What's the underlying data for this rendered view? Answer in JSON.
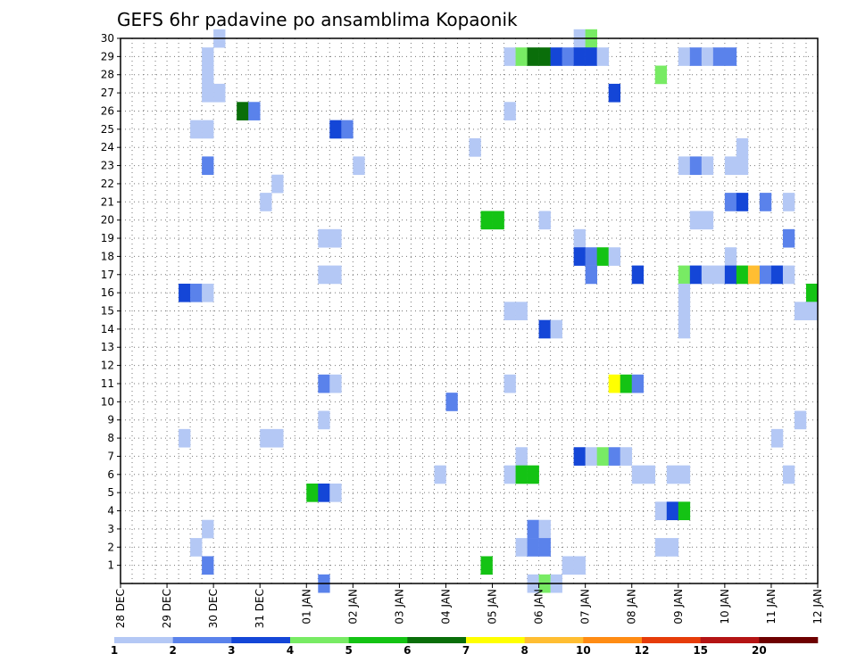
{
  "chart_data": {
    "type": "heatmap",
    "title": "GEFS 6hr padavine po ansamblima Kopaonik",
    "x_unit": "6h step",
    "x_range": [
      0,
      60
    ],
    "y_range": [
      0,
      30
    ],
    "y_ticks": [
      1,
      2,
      3,
      4,
      5,
      6,
      7,
      8,
      9,
      10,
      11,
      12,
      13,
      14,
      15,
      16,
      17,
      18,
      19,
      20,
      21,
      22,
      23,
      24,
      25,
      26,
      27,
      28,
      29,
      30
    ],
    "x_ticks": [
      {
        "step": 0,
        "label": "28 DEC"
      },
      {
        "step": 4,
        "label": "29 DEC"
      },
      {
        "step": 8,
        "label": "30 DEC"
      },
      {
        "step": 12,
        "label": "31 DEC"
      },
      {
        "step": 16,
        "label": "01 JAN"
      },
      {
        "step": 20,
        "label": "02 JAN"
      },
      {
        "step": 24,
        "label": "03 JAN"
      },
      {
        "step": 28,
        "label": "04 JAN"
      },
      {
        "step": 32,
        "label": "05 JAN"
      },
      {
        "step": 36,
        "label": "06 JAN"
      },
      {
        "step": 40,
        "label": "07 JAN"
      },
      {
        "step": 44,
        "label": "08 JAN"
      },
      {
        "step": 48,
        "label": "09 JAN"
      },
      {
        "step": 52,
        "label": "10 JAN"
      },
      {
        "step": 56,
        "label": "11 JAN"
      },
      {
        "step": 60,
        "label": "12 JAN"
      }
    ],
    "grid": true,
    "colorbar": {
      "position": "bottom",
      "labels": [
        "1",
        "2",
        "3",
        "4",
        "5",
        "6",
        "7",
        "8",
        "10",
        "12",
        "15",
        "20"
      ],
      "colors": [
        "#b4c8f5",
        "#5a82eb",
        "#1446d7",
        "#78eb64",
        "#14c314",
        "#0a6e0a",
        "#ffff00",
        "#ffbe32",
        "#ff8c14",
        "#e63c0a",
        "#b41414",
        "#6e0000"
      ]
    },
    "cells": [
      {
        "x": 8,
        "y": 30,
        "c": 0
      },
      {
        "x": 39,
        "y": 30,
        "c": 0
      },
      {
        "x": 40,
        "y": 30,
        "c": 3
      },
      {
        "x": 7,
        "y": 29,
        "c": 0
      },
      {
        "x": 33,
        "y": 29,
        "c": 0
      },
      {
        "x": 34,
        "y": 29,
        "c": 3
      },
      {
        "x": 35,
        "y": 29,
        "c": 5
      },
      {
        "x": 36,
        "y": 29,
        "c": 5
      },
      {
        "x": 37,
        "y": 29,
        "c": 2
      },
      {
        "x": 38,
        "y": 29,
        "c": 1
      },
      {
        "x": 39,
        "y": 29,
        "c": 2
      },
      {
        "x": 40,
        "y": 29,
        "c": 2
      },
      {
        "x": 41,
        "y": 29,
        "c": 0
      },
      {
        "x": 48,
        "y": 29,
        "c": 0
      },
      {
        "x": 49,
        "y": 29,
        "c": 1
      },
      {
        "x": 50,
        "y": 29,
        "c": 0
      },
      {
        "x": 51,
        "y": 29,
        "c": 1
      },
      {
        "x": 52,
        "y": 29,
        "c": 1
      },
      {
        "x": 7,
        "y": 28,
        "c": 0
      },
      {
        "x": 46,
        "y": 28,
        "c": 3
      },
      {
        "x": 7,
        "y": 27,
        "c": 0
      },
      {
        "x": 8,
        "y": 27,
        "c": 0
      },
      {
        "x": 42,
        "y": 27,
        "c": 2
      },
      {
        "x": 10,
        "y": 26,
        "c": 5
      },
      {
        "x": 11,
        "y": 26,
        "c": 1
      },
      {
        "x": 33,
        "y": 26,
        "c": 0
      },
      {
        "x": 6,
        "y": 25,
        "c": 0
      },
      {
        "x": 7,
        "y": 25,
        "c": 0
      },
      {
        "x": 18,
        "y": 25,
        "c": 2
      },
      {
        "x": 19,
        "y": 25,
        "c": 1
      },
      {
        "x": 30,
        "y": 24,
        "c": 0
      },
      {
        "x": 53,
        "y": 24,
        "c": 0
      },
      {
        "x": 7,
        "y": 23,
        "c": 1
      },
      {
        "x": 20,
        "y": 23,
        "c": 0
      },
      {
        "x": 48,
        "y": 23,
        "c": 0
      },
      {
        "x": 49,
        "y": 23,
        "c": 1
      },
      {
        "x": 50,
        "y": 23,
        "c": 0
      },
      {
        "x": 52,
        "y": 23,
        "c": 0
      },
      {
        "x": 53,
        "y": 23,
        "c": 0
      },
      {
        "x": 13,
        "y": 22,
        "c": 0
      },
      {
        "x": 12,
        "y": 21,
        "c": 0
      },
      {
        "x": 52,
        "y": 21,
        "c": 1
      },
      {
        "x": 53,
        "y": 21,
        "c": 2
      },
      {
        "x": 55,
        "y": 21,
        "c": 1
      },
      {
        "x": 57,
        "y": 21,
        "c": 0
      },
      {
        "x": 31,
        "y": 20,
        "c": 4
      },
      {
        "x": 32,
        "y": 20,
        "c": 4
      },
      {
        "x": 36,
        "y": 20,
        "c": 0
      },
      {
        "x": 49,
        "y": 20,
        "c": 0
      },
      {
        "x": 50,
        "y": 20,
        "c": 0
      },
      {
        "x": 17,
        "y": 19,
        "c": 0
      },
      {
        "x": 18,
        "y": 19,
        "c": 0
      },
      {
        "x": 39,
        "y": 19,
        "c": 0
      },
      {
        "x": 57,
        "y": 19,
        "c": 1
      },
      {
        "x": 39,
        "y": 18,
        "c": 2
      },
      {
        "x": 40,
        "y": 18,
        "c": 1
      },
      {
        "x": 41,
        "y": 18,
        "c": 4
      },
      {
        "x": 42,
        "y": 18,
        "c": 0
      },
      {
        "x": 52,
        "y": 18,
        "c": 0
      },
      {
        "x": 17,
        "y": 17,
        "c": 0
      },
      {
        "x": 18,
        "y": 17,
        "c": 0
      },
      {
        "x": 40,
        "y": 17,
        "c": 1
      },
      {
        "x": 44,
        "y": 17,
        "c": 2
      },
      {
        "x": 48,
        "y": 17,
        "c": 3
      },
      {
        "x": 49,
        "y": 17,
        "c": 2
      },
      {
        "x": 50,
        "y": 17,
        "c": 0
      },
      {
        "x": 51,
        "y": 17,
        "c": 0
      },
      {
        "x": 52,
        "y": 17,
        "c": 2
      },
      {
        "x": 53,
        "y": 17,
        "c": 4
      },
      {
        "x": 54,
        "y": 17,
        "c": 7
      },
      {
        "x": 55,
        "y": 17,
        "c": 1
      },
      {
        "x": 56,
        "y": 17,
        "c": 2
      },
      {
        "x": 57,
        "y": 17,
        "c": 0
      },
      {
        "x": 5,
        "y": 16,
        "c": 2
      },
      {
        "x": 6,
        "y": 16,
        "c": 1
      },
      {
        "x": 7,
        "y": 16,
        "c": 0
      },
      {
        "x": 59,
        "y": 16,
        "c": 4
      },
      {
        "x": 33,
        "y": 15,
        "c": 0
      },
      {
        "x": 34,
        "y": 15,
        "c": 0
      },
      {
        "x": 48,
        "y": 16,
        "c": 0
      },
      {
        "x": 48,
        "y": 15,
        "c": 0
      },
      {
        "x": 36,
        "y": 14,
        "c": 2
      },
      {
        "x": 37,
        "y": 14,
        "c": 0
      },
      {
        "x": 48,
        "y": 14,
        "c": 0
      },
      {
        "x": 59,
        "y": 15,
        "c": 0
      },
      {
        "x": 58,
        "y": 15,
        "c": 0
      },
      {
        "x": 42,
        "y": 11,
        "c": 6
      },
      {
        "x": 43,
        "y": 11,
        "c": 4
      },
      {
        "x": 44,
        "y": 11,
        "c": 1
      },
      {
        "x": 17,
        "y": 11,
        "c": 1
      },
      {
        "x": 18,
        "y": 11,
        "c": 0
      },
      {
        "x": 33,
        "y": 11,
        "c": 0
      },
      {
        "x": 28,
        "y": 10,
        "c": 1
      },
      {
        "x": 17,
        "y": 9,
        "c": 0
      },
      {
        "x": 58,
        "y": 9,
        "c": 0
      },
      {
        "x": 5,
        "y": 8,
        "c": 0
      },
      {
        "x": 12,
        "y": 8,
        "c": 0
      },
      {
        "x": 13,
        "y": 8,
        "c": 0
      },
      {
        "x": 56,
        "y": 8,
        "c": 0
      },
      {
        "x": 34,
        "y": 7,
        "c": 0
      },
      {
        "x": 39,
        "y": 7,
        "c": 2
      },
      {
        "x": 40,
        "y": 7,
        "c": 0
      },
      {
        "x": 41,
        "y": 7,
        "c": 3
      },
      {
        "x": 42,
        "y": 7,
        "c": 1
      },
      {
        "x": 43,
        "y": 7,
        "c": 0
      },
      {
        "x": 27,
        "y": 6,
        "c": 0
      },
      {
        "x": 33,
        "y": 6,
        "c": 0
      },
      {
        "x": 34,
        "y": 6,
        "c": 4
      },
      {
        "x": 35,
        "y": 6,
        "c": 4
      },
      {
        "x": 44,
        "y": 6,
        "c": 0
      },
      {
        "x": 45,
        "y": 6,
        "c": 0
      },
      {
        "x": 47,
        "y": 6,
        "c": 0
      },
      {
        "x": 48,
        "y": 6,
        "c": 0
      },
      {
        "x": 57,
        "y": 6,
        "c": 0
      },
      {
        "x": 16,
        "y": 5,
        "c": 4
      },
      {
        "x": 17,
        "y": 5,
        "c": 2
      },
      {
        "x": 18,
        "y": 5,
        "c": 0
      },
      {
        "x": 46,
        "y": 4,
        "c": 0
      },
      {
        "x": 47,
        "y": 4,
        "c": 2
      },
      {
        "x": 48,
        "y": 4,
        "c": 4
      },
      {
        "x": 7,
        "y": 3,
        "c": 0
      },
      {
        "x": 35,
        "y": 3,
        "c": 1
      },
      {
        "x": 36,
        "y": 3,
        "c": 0
      },
      {
        "x": 6,
        "y": 2,
        "c": 0
      },
      {
        "x": 34,
        "y": 2,
        "c": 0
      },
      {
        "x": 35,
        "y": 2,
        "c": 1
      },
      {
        "x": 36,
        "y": 2,
        "c": 1
      },
      {
        "x": 46,
        "y": 2,
        "c": 0
      },
      {
        "x": 47,
        "y": 2,
        "c": 0
      },
      {
        "x": 7,
        "y": 1,
        "c": 1
      },
      {
        "x": 31,
        "y": 1,
        "c": 4
      },
      {
        "x": 38,
        "y": 1,
        "c": 0
      },
      {
        "x": 39,
        "y": 1,
        "c": 0
      },
      {
        "x": 17,
        "y": 0,
        "c": 1
      },
      {
        "x": 35,
        "y": 0,
        "c": 0
      },
      {
        "x": 36,
        "y": 0,
        "c": 3
      },
      {
        "x": 37,
        "y": 0,
        "c": 0
      }
    ]
  }
}
